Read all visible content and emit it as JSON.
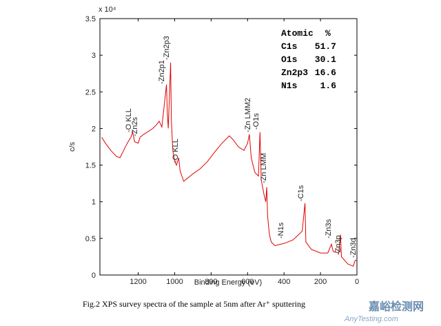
{
  "chart_data": {
    "type": "line",
    "xlabel": "Binding Energy (eV)",
    "ylabel": "c/s",
    "y_multiplier": "x 10⁴",
    "xlim": [
      1410,
      0
    ],
    "ylim": [
      0,
      3.5
    ],
    "xticks": [
      1200,
      1000,
      800,
      600,
      400,
      200,
      0
    ],
    "yticks": [
      0,
      0.5,
      1,
      1.5,
      2,
      2.5,
      3,
      3.5
    ],
    "series": [
      {
        "color": "#e00000",
        "x": [
          1400,
          1380,
          1350,
          1320,
          1300,
          1280,
          1260,
          1240,
          1230,
          1220,
          1200,
          1190,
          1170,
          1150,
          1120,
          1100,
          1085,
          1070,
          1045,
          1040,
          1035,
          1022,
          1018,
          1010,
          1000,
          990,
          978,
          970,
          960,
          950,
          940,
          900,
          860,
          820,
          780,
          740,
          700,
          680,
          650,
          620,
          600,
          590,
          580,
          570,
          560,
          540,
          532,
          525,
          510,
          500,
          495,
          490,
          480,
          470,
          450,
          420,
          400,
          350,
          320,
          300,
          285,
          280,
          250,
          200,
          160,
          140,
          130,
          100,
          90,
          85,
          50,
          20,
          10,
          0
        ],
        "values": [
          1.88,
          1.8,
          1.7,
          1.62,
          1.6,
          1.7,
          1.8,
          1.88,
          1.95,
          1.82,
          1.8,
          1.88,
          1.92,
          1.95,
          2.0,
          2.05,
          2.1,
          2.02,
          2.6,
          2.2,
          2.0,
          2.9,
          2.1,
          1.7,
          1.55,
          1.5,
          1.6,
          1.42,
          1.35,
          1.28,
          1.3,
          1.38,
          1.45,
          1.55,
          1.68,
          1.8,
          1.9,
          1.85,
          1.75,
          1.7,
          1.8,
          1.92,
          1.6,
          1.5,
          1.4,
          1.35,
          1.95,
          1.3,
          1.1,
          1.0,
          1.2,
          0.8,
          0.55,
          0.45,
          0.4,
          0.42,
          0.43,
          0.48,
          0.55,
          0.6,
          0.98,
          0.45,
          0.35,
          0.3,
          0.3,
          0.42,
          0.32,
          0.3,
          0.55,
          0.25,
          0.15,
          0.12,
          0.2,
          0.2
        ]
      }
    ],
    "annotations": [
      "-O KLL",
      "-Zn2s",
      "-Zn2p1",
      "-Zn2p3",
      "-O KLL",
      "-Zn LMM2",
      "-O1s",
      "-Zn LMM",
      "-N1s",
      "-C1s",
      "-Zn3s",
      "-Zn3p",
      "-Zn3d"
    ],
    "table": {
      "header": [
        "Atomic",
        "%"
      ],
      "rows": [
        [
          "C1s",
          "51.7"
        ],
        [
          "O1s",
          "30.1"
        ],
        [
          "Zn2p3",
          "16.6"
        ],
        [
          "N1s",
          "1.6"
        ]
      ]
    },
    "caption": "Fig.2      XPS survey spectra of the sample at 5nm after Ar⁺ sputtering",
    "watermark": [
      "嘉峪检测网",
      "AnyTesting.com"
    ]
  }
}
